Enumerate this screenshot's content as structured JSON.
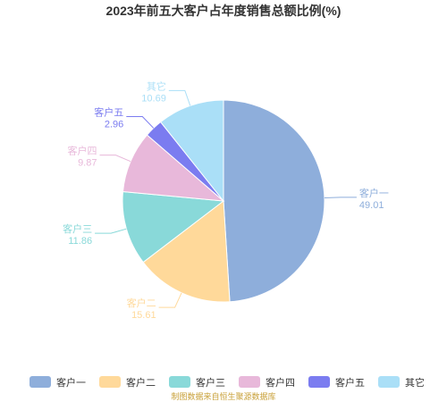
{
  "chart_data": {
    "type": "pie",
    "title": "2023年前五大客户占年度销售总额比例(%)",
    "slices": [
      {
        "label": "客户一",
        "value": 49.01,
        "value_text": "49.01",
        "color": "#8eaedb"
      },
      {
        "label": "客户二",
        "value": 15.61,
        "value_text": "15.61",
        "color": "#ffd99a"
      },
      {
        "label": "客户三",
        "value": 11.86,
        "value_text": "11.86",
        "color": "#89d9d9"
      },
      {
        "label": "客户四",
        "value": 9.87,
        "value_text": "9.87",
        "color": "#e8b8da"
      },
      {
        "label": "客户五",
        "value": 2.96,
        "value_text": "2.96",
        "color": "#7b7cf0"
      },
      {
        "label": "其它",
        "value": 10.69,
        "value_text": "10.69",
        "color": "#aadff7"
      }
    ],
    "legend_position": "bottom",
    "source": "制图数据来自恒生聚源数据库"
  }
}
